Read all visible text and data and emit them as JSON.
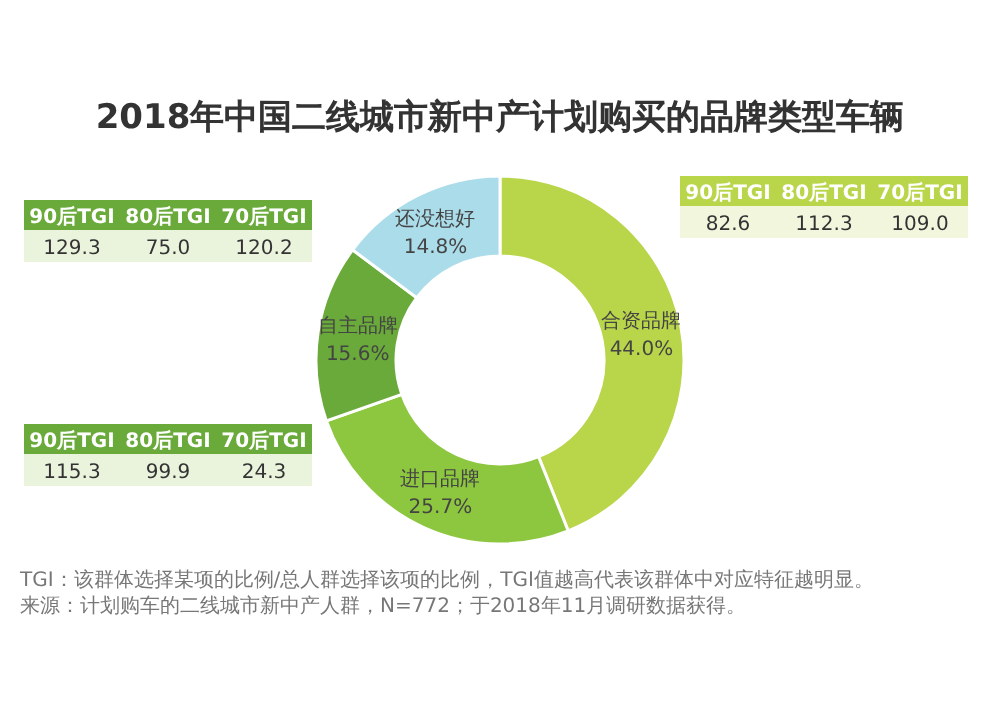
{
  "chart_data": {
    "type": "donut",
    "title": "2018年中国二线城市新中产计划购买的品牌类型车辆",
    "categories": [
      "合资品牌",
      "进口品牌",
      "自主品牌",
      "还没想好"
    ],
    "values": [
      44.0,
      25.7,
      15.6,
      14.8
    ],
    "value_labels": [
      "44.0%",
      "25.7%",
      "15.6%",
      "14.8%"
    ],
    "colors": [
      "#b9d54a",
      "#8dc63f",
      "#6aaa3a",
      "#aadcea"
    ],
    "annotations": [
      "90后TGI",
      "80后TGI",
      "70后TGI",
      "129.3",
      "75.0",
      "120.2",
      "90后TGI",
      "80后TGI",
      "70后TGI",
      "115.3",
      "99.9",
      "24.3",
      "90后TGI",
      "80后TGI",
      "70后TGI",
      "82.6",
      "112.3",
      "109.0",
      "TGI：该群体选择某项的比例/总人群选择该项的比例，TGI值越高代表该群体中对应特征越明显。",
      "来源：计划购车的二线城市新中产人群，N=772；于2018年11月调研数据获得。"
    ]
  }
}
